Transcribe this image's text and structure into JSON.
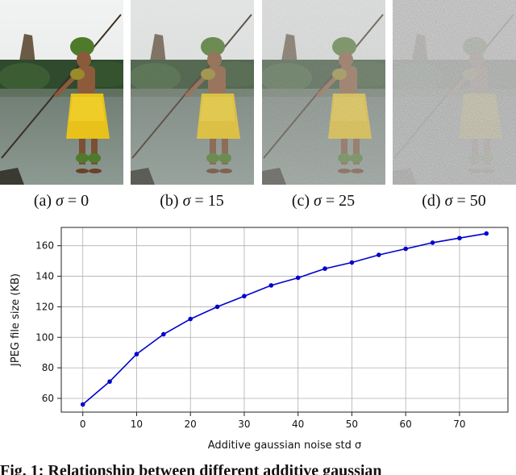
{
  "panels": [
    {
      "prefix": "(a)",
      "symbol": "σ",
      "eq": "=",
      "value": "0",
      "noise": 0
    },
    {
      "prefix": "(b)",
      "symbol": "σ",
      "eq": "=",
      "value": "15",
      "noise": 15
    },
    {
      "prefix": "(c)",
      "symbol": "σ",
      "eq": "=",
      "value": "25",
      "noise": 25
    },
    {
      "prefix": "(d)",
      "symbol": "σ",
      "eq": "=",
      "value": "50",
      "noise": 50
    }
  ],
  "figure_caption": "Fig. 1: Relationship between different additive gaussian",
  "colors": {
    "line": "#0000cc",
    "grid": "#b0b0b0",
    "grass_skirt": "#e8c21a",
    "water": "#8c9a93"
  },
  "chart_data": {
    "type": "line",
    "xlabel": "Additive gaussian noise std σ",
    "ylabel": "JPEG file size (KB)",
    "xlim": [
      -4,
      79
    ],
    "ylim": [
      51,
      172
    ],
    "xticks": [
      0,
      10,
      20,
      30,
      40,
      50,
      60,
      70
    ],
    "yticks": [
      60,
      80,
      100,
      120,
      140,
      160
    ],
    "grid": true,
    "series": [
      {
        "x": [
          0,
          5,
          10,
          15,
          20,
          25,
          30,
          35,
          40,
          45,
          50,
          55,
          60,
          65,
          70,
          75
        ],
        "y": [
          56,
          71,
          89,
          102,
          112,
          120,
          127,
          134,
          139,
          145,
          149,
          154,
          158,
          162,
          165,
          168
        ]
      }
    ]
  }
}
